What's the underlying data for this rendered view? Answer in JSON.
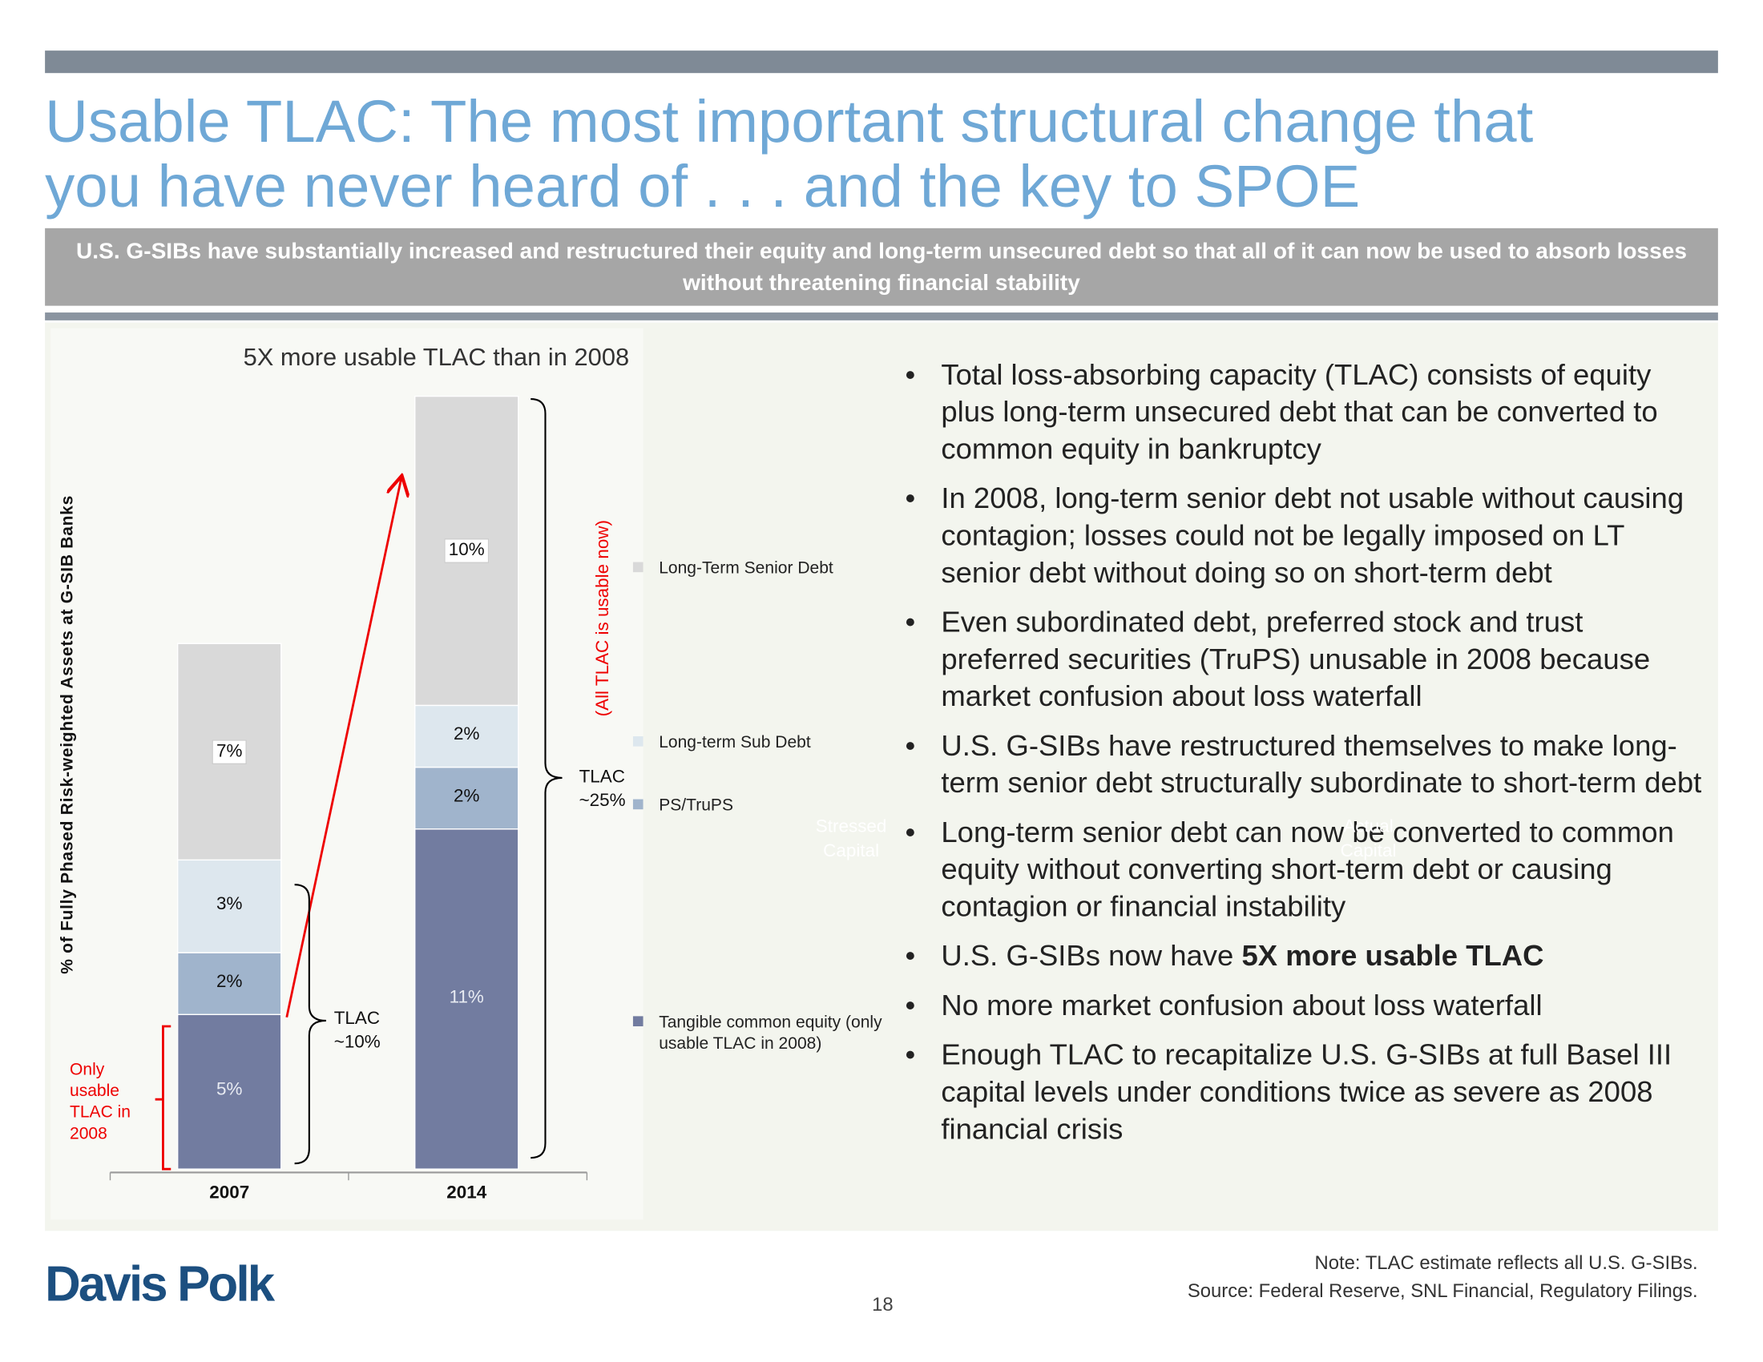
{
  "header": {
    "title": [
      "Usable TLAC: The most important structural change that",
      "you have never heard of . . . and the key to SPOE"
    ],
    "subtitle": "U.S. G-SIBs have substantially increased and restructured their equity and long-term unsecured debt so that all of it can now be used to absorb losses without threatening financial stability"
  },
  "chart_data": {
    "type": "bar",
    "stacked": true,
    "title": "5X more usable TLAC than in 2008",
    "y_label": "% of Fully Phased Risk-weighted Assets at G-SIB Banks",
    "categories": [
      "2007",
      "2014"
    ],
    "series": [
      {
        "name": "Tangible common equity (only usable TLAC in 2008)",
        "color": "#727ca0",
        "values": [
          5,
          11
        ],
        "value_labels": [
          "5%",
          "11%"
        ]
      },
      {
        "name": "PS/TruPS",
        "color": "#a0b4cc",
        "values": [
          2,
          2
        ],
        "value_labels": [
          "2%",
          "2%"
        ]
      },
      {
        "name": "Long-term Sub Debt",
        "color": "#dde7ee",
        "values": [
          3,
          2
        ],
        "value_labels": [
          "3%",
          "2%"
        ]
      },
      {
        "name": "Long-Term Senior Debt",
        "color": "#d9d9d9",
        "values": [
          7,
          10
        ],
        "value_labels": [
          "7%",
          "10%"
        ]
      }
    ],
    "annotations": [
      "Only usable TLAC in 2008",
      "TLAC ~10%",
      "TLAC ~25%",
      "(All TLAC is usable now)",
      "Stressed Capital",
      "Actual Capital"
    ]
  },
  "bullets": [
    "Total loss-absorbing capacity (TLAC) consists of equity plus long-term unsecured debt that can be converted to common equity in bankruptcy",
    "In 2008, long-term senior debt not usable without causing contagion; losses could not be legally imposed on LT senior debt without doing so on short-term debt",
    "Even subordinated debt, preferred stock and trust preferred securities (TruPS) unusable in 2008 because market confusion about loss waterfall",
    "U.S. G-SIBs have restructured themselves to make long-term senior debt structurally subordinate to short-term debt",
    "Long-term senior debt can now be converted to common equity without converting short-term debt or causing contagion or financial instability",
    {
      "text": "U.S. G-SIBs now have ",
      "strong": "5X more usable TLAC"
    },
    "No more market confusion about loss waterfall",
    "Enough TLAC to recapitalize U.S. G-SIBs at full Basel III capital levels under conditions twice as severe as 2008 financial crisis"
  ],
  "footer": {
    "logo": "Davis Polk",
    "page": 18,
    "note": "Note: TLAC estimate reflects all U.S. G-SIBs.",
    "source": "Source: Federal Reserve, SNL Financial, Regulatory Filings."
  }
}
